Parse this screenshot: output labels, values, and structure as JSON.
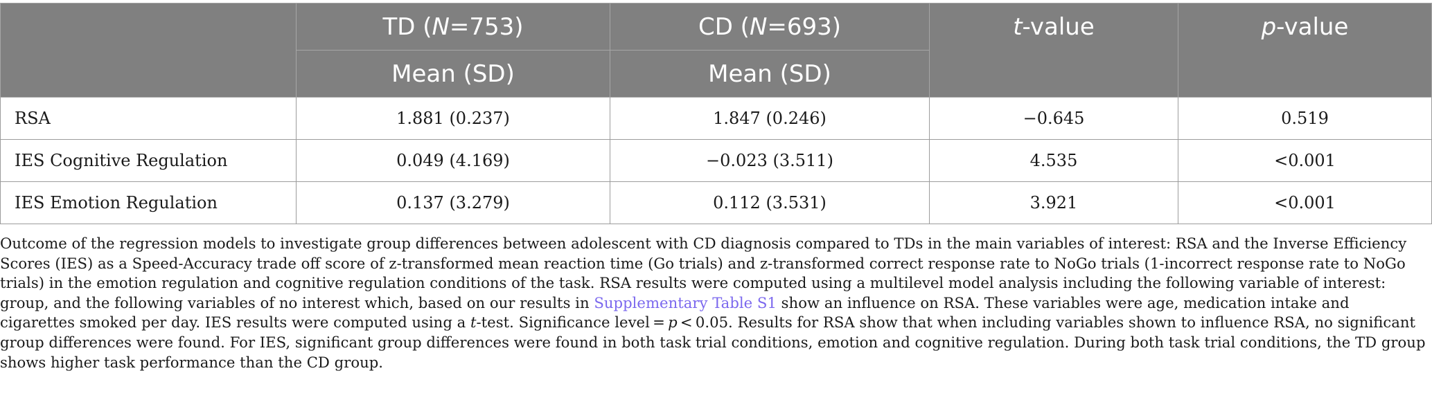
{
  "table": {
    "header": {
      "td_label": "TD (",
      "td_n": "N",
      "td_count": "=753)",
      "cd_label": "CD (",
      "cd_n": "N",
      "cd_count": "=693)",
      "t_italic": "t",
      "t_rest": "-value",
      "p_italic": "p",
      "p_rest": "-value",
      "td_sub": "Mean (SD)",
      "cd_sub": "Mean (SD)"
    },
    "rows": [
      {
        "label": "RSA",
        "td": "1.881 (0.237)",
        "cd": "1.847 (0.246)",
        "t": "−0.645",
        "p": "0.519"
      },
      {
        "label": "IES Cognitive Regulation",
        "td": "0.049 (4.169)",
        "cd": "−0.023 (3.511)",
        "t": "4.535",
        "p": "<0.001"
      },
      {
        "label": "IES Emotion Regulation",
        "td": "0.137 (3.279)",
        "cd": "0.112 (3.531)",
        "t": "3.921",
        "p": "<0.001"
      }
    ]
  },
  "caption": {
    "part1": "Outcome of the regression models to investigate group differences between adolescent with CD diagnosis compared to TDs in the main variables of interest: RSA and the Inverse Efficiency Scores (IES) as a Speed-Accuracy trade off score of z-transformed mean reaction time (Go trials) and z-transformed correct response rate to NoGo trials (1-incorrect response rate to NoGo trials) in the emotion regulation and cognitive regulation conditions of the task. RSA results were computed using a multilevel model analysis including the following variable of interest: group, and the following variables of no interest which, based on our results in ",
    "link": "Supplementary Table S1",
    "part2": " show an influence on RSA. These variables were age, medication intake and cigarettes smoked per day. IES results were computed using a ",
    "t_italic": "t",
    "part3": "-test. Significance level = ",
    "p_italic": "p",
    "part4": " < 0.05. Results for RSA show that when including variables shown to influence RSA, no significant group differences were found. For IES, significant group differences were found in both task trial conditions, emotion and cognitive regulation. During both task trial conditions, the TD group shows higher task performance than the CD group."
  },
  "colors": {
    "header_bg": "#808080",
    "header_text": "#ffffff",
    "link": "#7b68ee"
  }
}
